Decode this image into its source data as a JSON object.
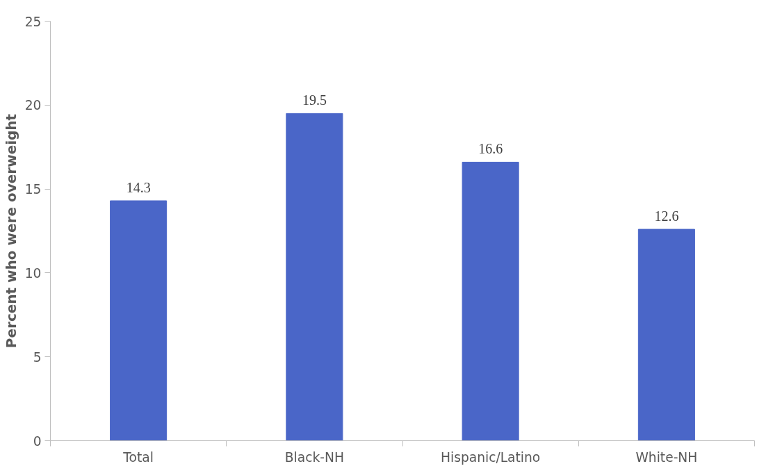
{
  "chart_data": {
    "type": "bar",
    "ylabel": "Percent who were overweight",
    "categories": [
      "Total",
      "Black-NH",
      "Hispanic/Latino",
      "White-NH"
    ],
    "values": [
      14.3,
      19.5,
      16.6,
      12.6
    ],
    "color": "#4a66c8",
    "ylim": [
      0,
      25
    ],
    "yticks": [
      0,
      5,
      10,
      15,
      20,
      25
    ],
    "grid": false,
    "data_labels": true
  }
}
